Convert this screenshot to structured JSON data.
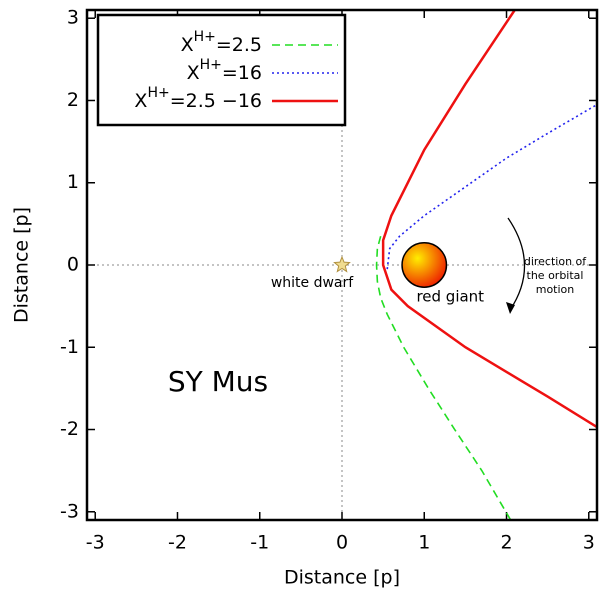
{
  "chart_data": {
    "type": "line",
    "xlabel": "Distance [p]",
    "ylabel": "Distance [p]",
    "xlim": [
      -3.1,
      3.1
    ],
    "ylim": [
      -3.1,
      3.1
    ],
    "xticks": [
      -3,
      -2,
      -1,
      0,
      1,
      2,
      3
    ],
    "yticks": [
      -3,
      -2,
      -1,
      0,
      1,
      2,
      3
    ],
    "zero_lines": true,
    "series": [
      {
        "label": {
          "base": "X",
          "sup": "H+",
          "rest": "=2.5"
        },
        "color": "#22dd22",
        "dash": "dashed",
        "x": [
          0.47,
          0.43,
          0.42,
          0.43,
          0.47,
          0.55,
          0.75,
          1.05,
          1.37,
          1.7,
          2.05
        ],
        "values": [
          0.35,
          0.2,
          0,
          -0.2,
          -0.4,
          -0.6,
          -1.0,
          -1.5,
          -2.0,
          -2.5,
          -3.1
        ]
      },
      {
        "label": {
          "base": "X",
          "sup": "H+",
          "rest": "=16"
        },
        "color": "#2222ee",
        "dash": "dotted",
        "x": [
          0.55,
          0.58,
          0.7,
          1.0,
          1.5,
          2.0,
          2.5,
          3.1
        ],
        "values": [
          -0.05,
          0.2,
          0.35,
          0.6,
          0.95,
          1.3,
          1.6,
          1.95
        ]
      },
      {
        "label": {
          "base": "X",
          "sup": "H+",
          "rest": "=2.5 −16"
        },
        "color": "#ee1111",
        "dash": "solid",
        "x": [
          2.1,
          1.5,
          1.0,
          0.6,
          0.5,
          0.5,
          0.6,
          0.8,
          1.5,
          2.5,
          3.1
        ],
        "values": [
          3.1,
          2.2,
          1.4,
          0.6,
          0.3,
          0,
          -0.3,
          -0.5,
          -1.0,
          -1.6,
          -1.97
        ]
      }
    ],
    "objects": [
      {
        "name": "white dwarf",
        "x": 0,
        "y": 0
      },
      {
        "name": "red giant",
        "x": 1,
        "y": 0,
        "radius": 0.27
      }
    ],
    "annotations": {
      "direction": [
        "direction of",
        "the orbital",
        "motion"
      ],
      "system": "SY Mus"
    }
  }
}
